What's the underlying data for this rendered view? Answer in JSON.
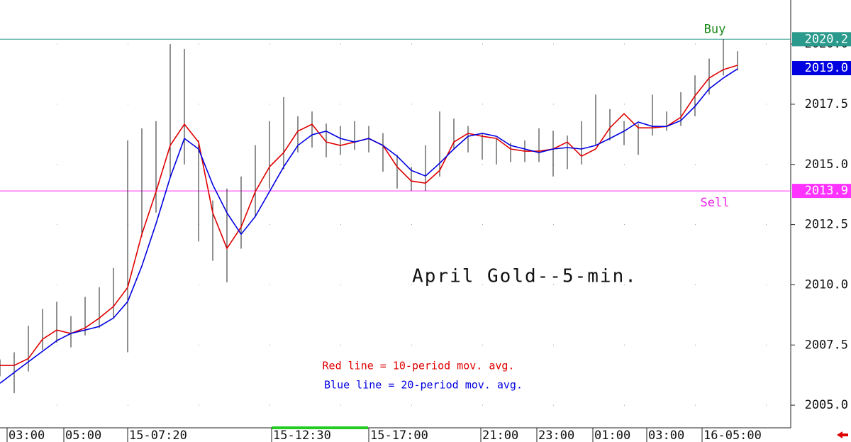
{
  "chart_data": {
    "type": "bar-line",
    "title": "April Gold--5-min.",
    "annotations": [
      "Red line = 10-period mov. avg.",
      "Blue line = 20-period mov. avg."
    ],
    "annotation_colors": [
      "#e00000",
      "#0000e0"
    ],
    "x": [
      0,
      1,
      2,
      3,
      4,
      5,
      6,
      7,
      8,
      9,
      10,
      11,
      12,
      13,
      14,
      15,
      16,
      17,
      18,
      19,
      20,
      21,
      22,
      23,
      24,
      25,
      26,
      27,
      28,
      29,
      30,
      31,
      32,
      33,
      34,
      35,
      36,
      37,
      38,
      39,
      40,
      41,
      42,
      43,
      44,
      45,
      46,
      47,
      48,
      49,
      50,
      51,
      52
    ],
    "high": [
      2006.9,
      2007.2,
      2008.3,
      2009.0,
      2009.3,
      2008.7,
      2009.5,
      2009.9,
      2010.7,
      2016.0,
      2016.5,
      2016.8,
      2020.0,
      2019.8,
      2016.0,
      2013.5,
      2014.0,
      2014.5,
      2015.8,
      2016.8,
      2017.8,
      2017.0,
      2017.2,
      2016.7,
      2016.6,
      2016.8,
      2016.6,
      2016.3,
      2015.4,
      2014.9,
      2015.8,
      2017.2,
      2016.9,
      2016.6,
      2016.3,
      2016.1,
      2015.9,
      2016.0,
      2016.5,
      2016.4,
      2016.2,
      2016.8,
      2017.9,
      2017.3,
      2016.8,
      2016.7,
      2017.9,
      2017.2,
      2018.0,
      2018.7,
      2019.4,
      2020.2,
      2019.7
    ],
    "low": [
      2006.2,
      2005.5,
      2006.4,
      2007.3,
      2007.6,
      2007.4,
      2007.9,
      2008.2,
      2008.6,
      2007.2,
      2012.0,
      2013.0,
      2014.5,
      2015.0,
      2011.8,
      2011.0,
      2010.1,
      2011.5,
      2012.8,
      2014.0,
      2014.8,
      2015.5,
      2015.7,
      2015.3,
      2015.4,
      2015.6,
      2015.5,
      2014.7,
      2014.0,
      2013.9,
      2013.9,
      2014.5,
      2015.6,
      2015.5,
      2015.2,
      2015.0,
      2015.1,
      2015.1,
      2015.1,
      2014.5,
      2014.8,
      2015.0,
      2015.8,
      2016.0,
      2015.8,
      2015.4,
      2016.2,
      2016.4,
      2016.6,
      2017.0,
      2017.9,
      2018.7,
      2018.9
    ],
    "bar_color": "#222222",
    "series": [
      {
        "color": "#e00000",
        "values": [
          2006.65,
          2006.65,
          2006.94,
          2007.74,
          2008.12,
          2007.98,
          2008.21,
          2008.62,
          2009.1,
          2009.89,
          2012.1,
          2013.87,
          2015.79,
          2016.67,
          2015.93,
          2012.99,
          2011.51,
          2012.4,
          2013.87,
          2014.9,
          2015.49,
          2016.38,
          2016.67,
          2015.93,
          2015.79,
          2015.93,
          2016.08,
          2015.79,
          2014.9,
          2014.31,
          2014.22,
          2014.75,
          2015.93,
          2016.29,
          2016.17,
          2016.08,
          2015.64,
          2015.55,
          2015.55,
          2015.64,
          2015.93,
          2015.34,
          2015.64,
          2016.52,
          2017.11,
          2016.52,
          2016.52,
          2016.58,
          2016.96,
          2017.85,
          2018.59,
          2018.94,
          2019.12
        ]
      },
      {
        "color": "#0000e0",
        "values": [
          2005.91,
          2006.36,
          2006.8,
          2007.24,
          2007.68,
          2007.98,
          2008.12,
          2008.27,
          2008.62,
          2009.3,
          2010.78,
          2012.54,
          2014.46,
          2016.08,
          2015.64,
          2014.16,
          2012.99,
          2012.1,
          2012.84,
          2013.87,
          2014.9,
          2015.79,
          2016.23,
          2016.38,
          2016.08,
          2015.93,
          2016.08,
          2015.79,
          2015.34,
          2014.75,
          2014.52,
          2015.05,
          2015.64,
          2016.17,
          2016.29,
          2016.17,
          2015.79,
          2015.64,
          2015.49,
          2015.64,
          2015.7,
          2015.64,
          2015.79,
          2016.08,
          2016.38,
          2016.76,
          2016.58,
          2016.58,
          2016.82,
          2017.41,
          2018.14,
          2018.59,
          2018.97
        ]
      }
    ],
    "levels": [
      {
        "value": 2020.2,
        "label": "2020.2",
        "color": "#2a9a8c",
        "text": "Buy",
        "text_color": "#1a8a1a"
      },
      {
        "value": 2013.9,
        "label": "2013.9",
        "color": "#ff33ff",
        "text": "Sell",
        "text_color": "#ee22ee"
      }
    ],
    "last_price": {
      "value": 2019.0,
      "label": "2019.0",
      "color": "#0000e0"
    },
    "xlim": [
      0,
      55.75
    ],
    "xticks": [
      {
        "value": 0.5,
        "label": "03:00"
      },
      {
        "value": 4.5,
        "label": "05:00"
      },
      {
        "value": 9,
        "label": "15-07:20"
      },
      {
        "value": 19.15,
        "label": "15-12:30"
      },
      {
        "value": 26,
        "label": "15-17:00"
      },
      {
        "value": 33.9,
        "label": "21:00"
      },
      {
        "value": 37.85,
        "label": "23:00"
      },
      {
        "value": 41.8,
        "label": "01:00"
      },
      {
        "value": 45.6,
        "label": "03:00"
      },
      {
        "value": 49.5,
        "label": "16-05:00"
      }
    ],
    "ylim": [
      2004.06,
      2021.83
    ],
    "yticks": [
      {
        "value": 2005,
        "label": "2005.0"
      },
      {
        "value": 2007.5,
        "label": "2007.5"
      },
      {
        "value": 2010,
        "label": "2010.0"
      },
      {
        "value": 2012.5,
        "label": "2012.5"
      },
      {
        "value": 2015,
        "label": "2015.0"
      },
      {
        "value": 2017.5,
        "label": "2017.5"
      },
      {
        "value": 2020,
        "label": "2020.0"
      }
    ],
    "grid": true
  }
}
